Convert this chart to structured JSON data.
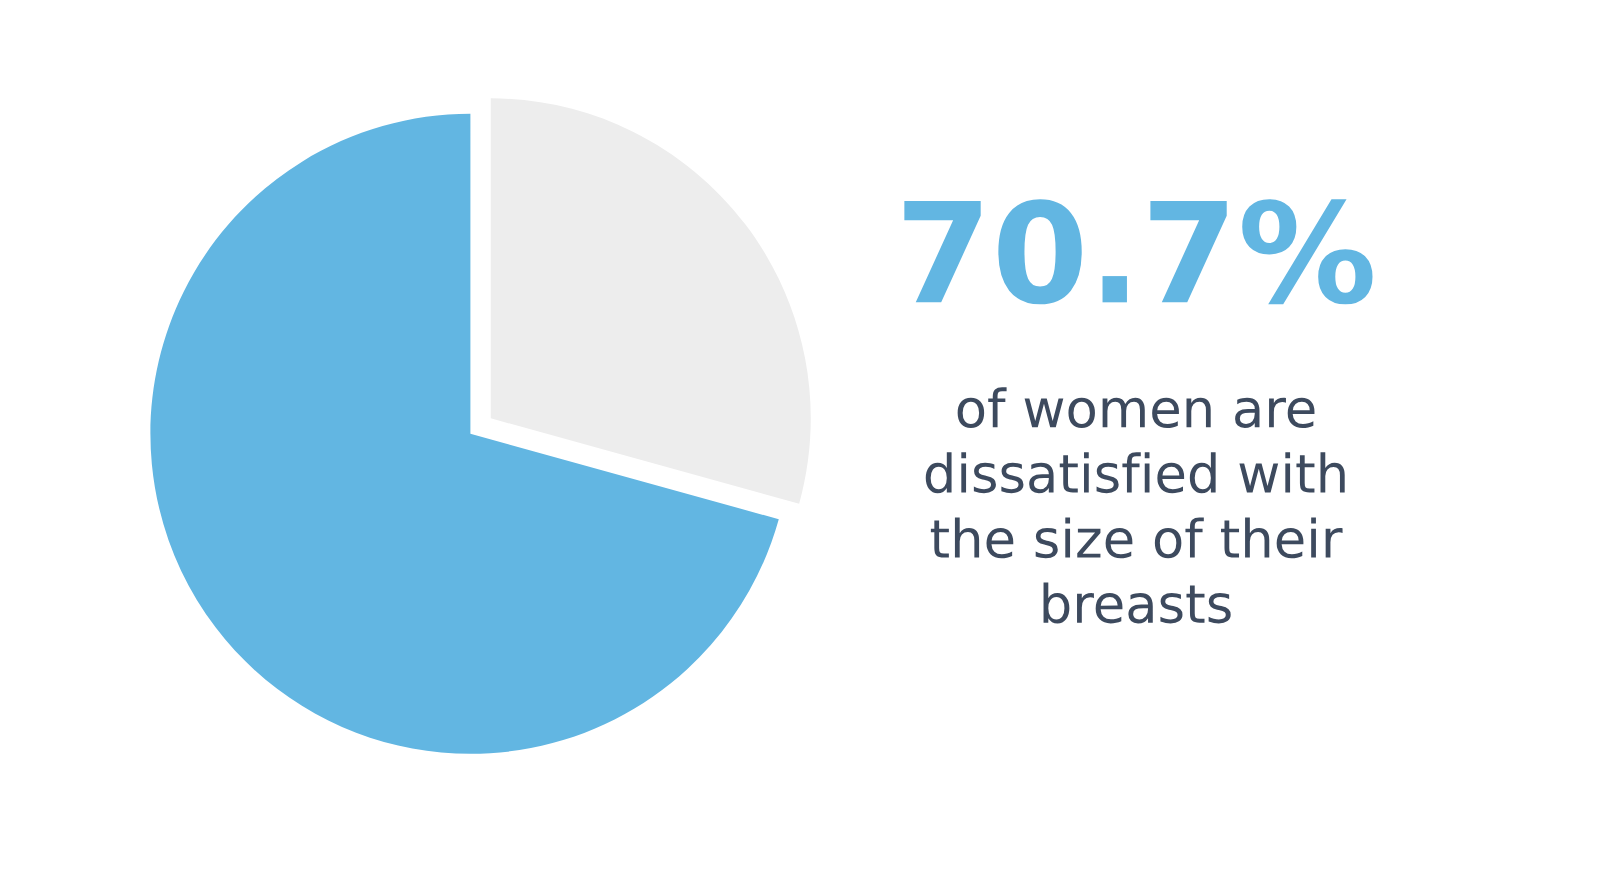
{
  "chart_data": {
    "type": "pie",
    "categories": [
      null,
      null
    ],
    "values": [
      70.7,
      29.3
    ],
    "colors": [
      "#62b6e2",
      "#ededed"
    ],
    "annotations": [
      "70.7%",
      "of women are\ndissatisfied with\nthe size of their\nbreasts"
    ]
  }
}
